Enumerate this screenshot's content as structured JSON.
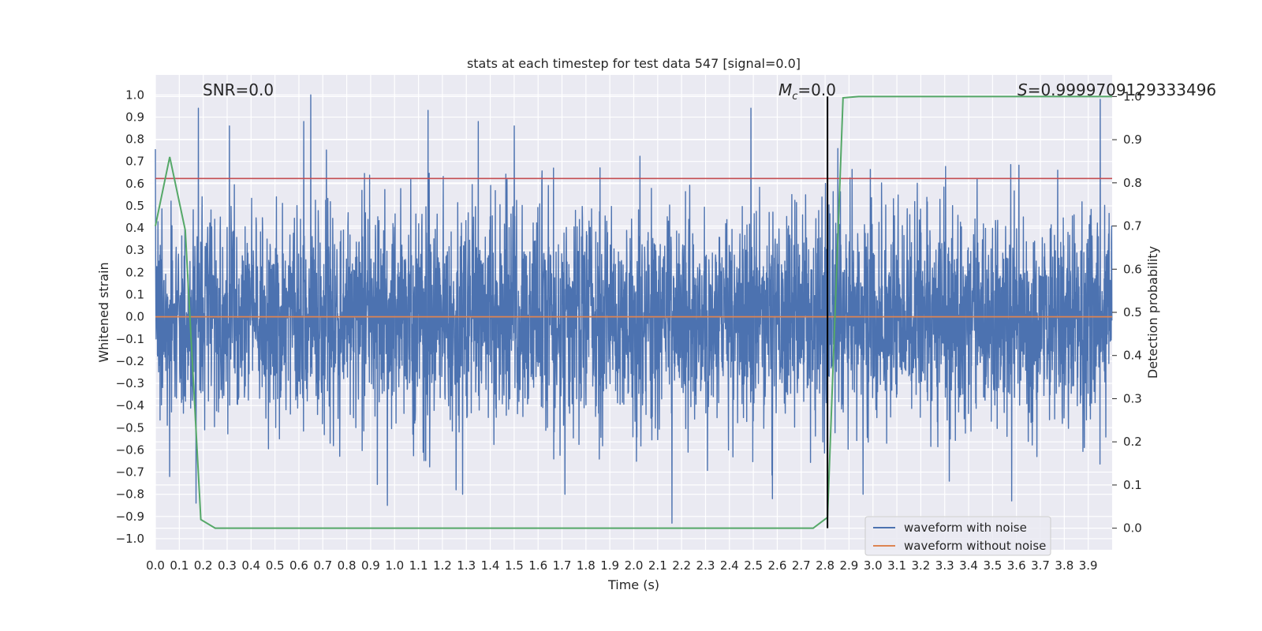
{
  "chart_data": {
    "type": "line",
    "title": "stats at each timestep for test data 547 [signal=0.0]",
    "xlabel": "Time (s)",
    "ylabel": "Whitened strain",
    "y2label": "Detection probability",
    "xlim": [
      0.0,
      4.0
    ],
    "ylim": [
      -1.05,
      1.09
    ],
    "y2lim": [
      -0.05,
      1.05
    ],
    "grid": true,
    "x_ticks": [
      "0.0",
      "0.1",
      "0.2",
      "0.3",
      "0.4",
      "0.5",
      "0.6",
      "0.7",
      "0.8",
      "0.9",
      "1.0",
      "1.1",
      "1.2",
      "1.3",
      "1.4",
      "1.5",
      "1.6",
      "1.7",
      "1.8",
      "1.9",
      "2.0",
      "2.1",
      "2.2",
      "2.3",
      "2.4",
      "2.5",
      "2.6",
      "2.7",
      "2.8",
      "2.9",
      "3.0",
      "3.1",
      "3.2",
      "3.3",
      "3.4",
      "3.5",
      "3.6",
      "3.7",
      "3.8",
      "3.9"
    ],
    "y_ticks": [
      "1.0",
      "0.9",
      "0.8",
      "0.7",
      "0.6",
      "0.5",
      "0.4",
      "0.3",
      "0.2",
      "0.1",
      "0.0",
      "−0.1",
      "−0.2",
      "−0.3",
      "−0.4",
      "−0.5",
      "−0.6",
      "−0.7",
      "−0.8",
      "−0.9",
      "−1.0"
    ],
    "y2_ticks": [
      "1.0",
      "0.9",
      "0.8",
      "0.7",
      "0.6",
      "0.5",
      "0.4",
      "0.3",
      "0.2",
      "0.1",
      "0.0"
    ],
    "annotations": {
      "snr": "SNR=0.0",
      "mc_symbol": "M",
      "mc_subscript": "c",
      "mc_value": "=0.0",
      "s_symbol": "S",
      "s_value": "=0.9999709129333496"
    },
    "legend": {
      "placement": "lower-right",
      "entries": [
        "waveform with noise",
        "waveform without noise"
      ]
    },
    "colors": {
      "noisy": "#4c72b0",
      "clean": "#dd8452",
      "probability": "#55a868",
      "threshold": "#c44e52",
      "marker": "#000000",
      "background": "#eaeaf2",
      "grid": "#ffffff"
    },
    "threshold_y": 0.81,
    "marker_time": 2.81,
    "series": [
      {
        "name": "waveform with noise",
        "axis": "left",
        "note": "noise trace, approx 4096 samples, amplitude ~ +/-0.4 with spikes to +/-1.0",
        "sample_count": 4096,
        "spikes": [
          {
            "t": 0.18,
            "y": 0.94
          },
          {
            "t": 0.31,
            "y": 0.86
          },
          {
            "t": 0.62,
            "y": 0.88
          },
          {
            "t": 0.65,
            "y": 1.0
          },
          {
            "t": 1.14,
            "y": 0.93
          },
          {
            "t": 1.35,
            "y": 0.88
          },
          {
            "t": 1.5,
            "y": 0.86
          },
          {
            "t": 2.49,
            "y": 0.94
          },
          {
            "t": 3.95,
            "y": 0.98
          },
          {
            "t": 0.06,
            "y": -0.72
          },
          {
            "t": 0.17,
            "y": -0.84
          },
          {
            "t": 0.97,
            "y": -0.85
          },
          {
            "t": 2.16,
            "y": -0.93
          },
          {
            "t": 2.58,
            "y": -0.82
          },
          {
            "t": 3.58,
            "y": -0.83
          }
        ]
      },
      {
        "name": "waveform without noise",
        "axis": "left",
        "x": [
          0.0,
          4.0
        ],
        "y": [
          0.0,
          0.0
        ]
      },
      {
        "axis": "right",
        "x": [
          0.0,
          0.06,
          0.125,
          0.19,
          0.25,
          2.0,
          2.75,
          2.81,
          2.875,
          2.94,
          4.0
        ],
        "y": [
          0.7,
          0.86,
          0.69,
          0.02,
          0.0,
          0.0,
          0.0,
          0.025,
          0.997,
          1.0,
          1.0
        ]
      }
    ]
  }
}
